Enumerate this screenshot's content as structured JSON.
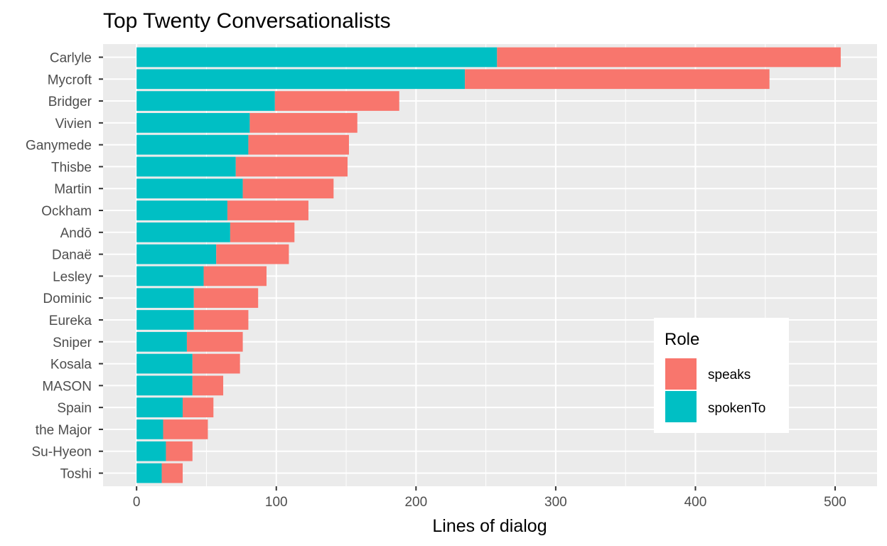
{
  "chart_data": {
    "type": "bar",
    "orientation": "horizontal",
    "stacked": true,
    "title": "Top Twenty Conversationalists",
    "xlabel": "Lines of dialog",
    "ylabel": "",
    "xlim": [
      -24,
      530
    ],
    "x_ticks": [
      0,
      100,
      200,
      300,
      400,
      500
    ],
    "grid": true,
    "legend_position": "bottom-right (inside)",
    "legend_title": "Role",
    "categories": [
      "Carlyle",
      "Mycroft",
      "Bridger",
      "Vivien",
      "Ganymede",
      "Thisbe",
      "Martin",
      "Ockham",
      "Andō",
      "Danaë",
      "Lesley",
      "Dominic",
      "Eureka",
      "Sniper",
      "Kosala",
      "MASON",
      "Spain",
      "the Major",
      "Su-Hyeon",
      "Toshi"
    ],
    "series": [
      {
        "name": "spokenTo",
        "color": "#00BFC4",
        "values": [
          258,
          235,
          99,
          81,
          80,
          71,
          76,
          65,
          67,
          57,
          48,
          41,
          41,
          36,
          40,
          40,
          33,
          19,
          21,
          18
        ]
      },
      {
        "name": "speaks",
        "color": "#F8766D",
        "values": [
          246,
          218,
          89,
          77,
          72,
          80,
          65,
          58,
          46,
          52,
          45,
          46,
          39,
          40,
          34,
          22,
          22,
          32,
          19,
          15
        ]
      }
    ],
    "colors": {
      "panel": "#EBEBEB",
      "grid": "#FFFFFF",
      "tick_text": "#4D4D4D"
    }
  }
}
